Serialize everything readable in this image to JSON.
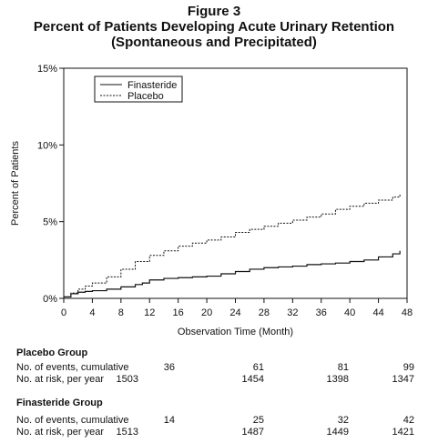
{
  "figure": {
    "label": "Figure 3",
    "title": "Percent of Patients Developing Acute Urinary Retention",
    "subtitle": "(Spontaneous and Precipitated)"
  },
  "chart_data": {
    "type": "line",
    "title": "Percent of Patients Developing Acute Urinary Retention",
    "subtitle": "(Spontaneous and Precipitated)",
    "xlabel": "Observation Time (Month)",
    "ylabel": "Percent of Patients",
    "xlim": [
      0,
      48
    ],
    "ylim": [
      0,
      15
    ],
    "x_ticks": [
      0,
      4,
      8,
      12,
      16,
      20,
      24,
      28,
      32,
      36,
      40,
      44,
      48
    ],
    "y_ticks": [
      0,
      5,
      10,
      15
    ],
    "y_tick_labels": [
      "0%",
      "5%",
      "10%",
      "15%"
    ],
    "legend_position": "top-left",
    "grid": false,
    "series": [
      {
        "name": "Finasteride",
        "style": "solid",
        "color": "#111111",
        "x": [
          0,
          1,
          2,
          3,
          4,
          6,
          8,
          10,
          11,
          12,
          14,
          16,
          18,
          20,
          22,
          24,
          26,
          28,
          30,
          32,
          34,
          36,
          38,
          40,
          42,
          44,
          46,
          47
        ],
        "y": [
          0.1,
          0.3,
          0.4,
          0.45,
          0.5,
          0.6,
          0.75,
          0.9,
          1.0,
          1.2,
          1.3,
          1.35,
          1.4,
          1.45,
          1.6,
          1.75,
          1.9,
          2.0,
          2.05,
          2.1,
          2.2,
          2.25,
          2.3,
          2.4,
          2.5,
          2.7,
          2.9,
          3.1
        ]
      },
      {
        "name": "Placebo",
        "style": "dashed",
        "color": "#111111",
        "x": [
          0,
          1,
          2,
          3,
          4,
          6,
          8,
          10,
          12,
          14,
          16,
          18,
          20,
          22,
          24,
          26,
          28,
          30,
          32,
          34,
          36,
          38,
          40,
          42,
          44,
          46,
          47
        ],
        "y": [
          0.1,
          0.35,
          0.6,
          0.8,
          1.0,
          1.4,
          1.9,
          2.4,
          2.8,
          3.1,
          3.4,
          3.6,
          3.8,
          4.0,
          4.3,
          4.5,
          4.7,
          4.9,
          5.1,
          5.3,
          5.5,
          5.8,
          6.0,
          6.2,
          6.4,
          6.6,
          6.8
        ]
      }
    ]
  },
  "table": {
    "placebo": {
      "title": "Placebo Group",
      "events_label": "No. of events, cumulative",
      "atrisk_label": "No. at risk, per year",
      "events": [
        "36",
        "61",
        "81",
        "99"
      ],
      "atrisk": [
        "1503",
        "1454",
        "1398",
        "1347"
      ]
    },
    "finasteride": {
      "title": "Finasteride Group",
      "events_label": "No. of events, cumulative",
      "atrisk_label": "No. at risk, per year",
      "events": [
        "14",
        "25",
        "32",
        "42"
      ],
      "atrisk": [
        "1513",
        "1487",
        "1449",
        "1421"
      ]
    }
  }
}
